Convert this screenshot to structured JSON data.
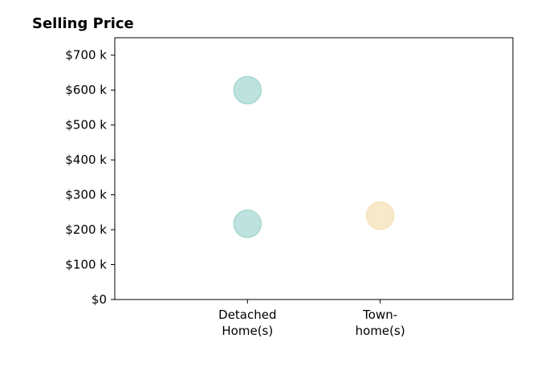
{
  "chart_data": {
    "type": "scatter",
    "title": "Selling Price",
    "xlabel": "",
    "ylabel": "",
    "categories": [
      "Detached\nHome(s)",
      "Town-\nhome(s)"
    ],
    "yticks": [
      0,
      100,
      200,
      300,
      400,
      500,
      600,
      700
    ],
    "ytick_labels": [
      "$0",
      "$100 k",
      "$200 k",
      "$300 k",
      "$400 k",
      "$500 k",
      "$600 k",
      "$700 k"
    ],
    "ylim": [
      0,
      750
    ],
    "xlim": [
      -1,
      2
    ],
    "grid": false,
    "points": [
      {
        "category_index": 0,
        "y": 600,
        "color": "#a8d8d2"
      },
      {
        "category_index": 0,
        "y": 217,
        "color": "#a8d8d2"
      },
      {
        "category_index": 1,
        "y": 240,
        "color": "#f5e2b8"
      }
    ],
    "colors": {
      "detached": "#a8d8d2",
      "townhome": "#f5e2b8"
    }
  }
}
